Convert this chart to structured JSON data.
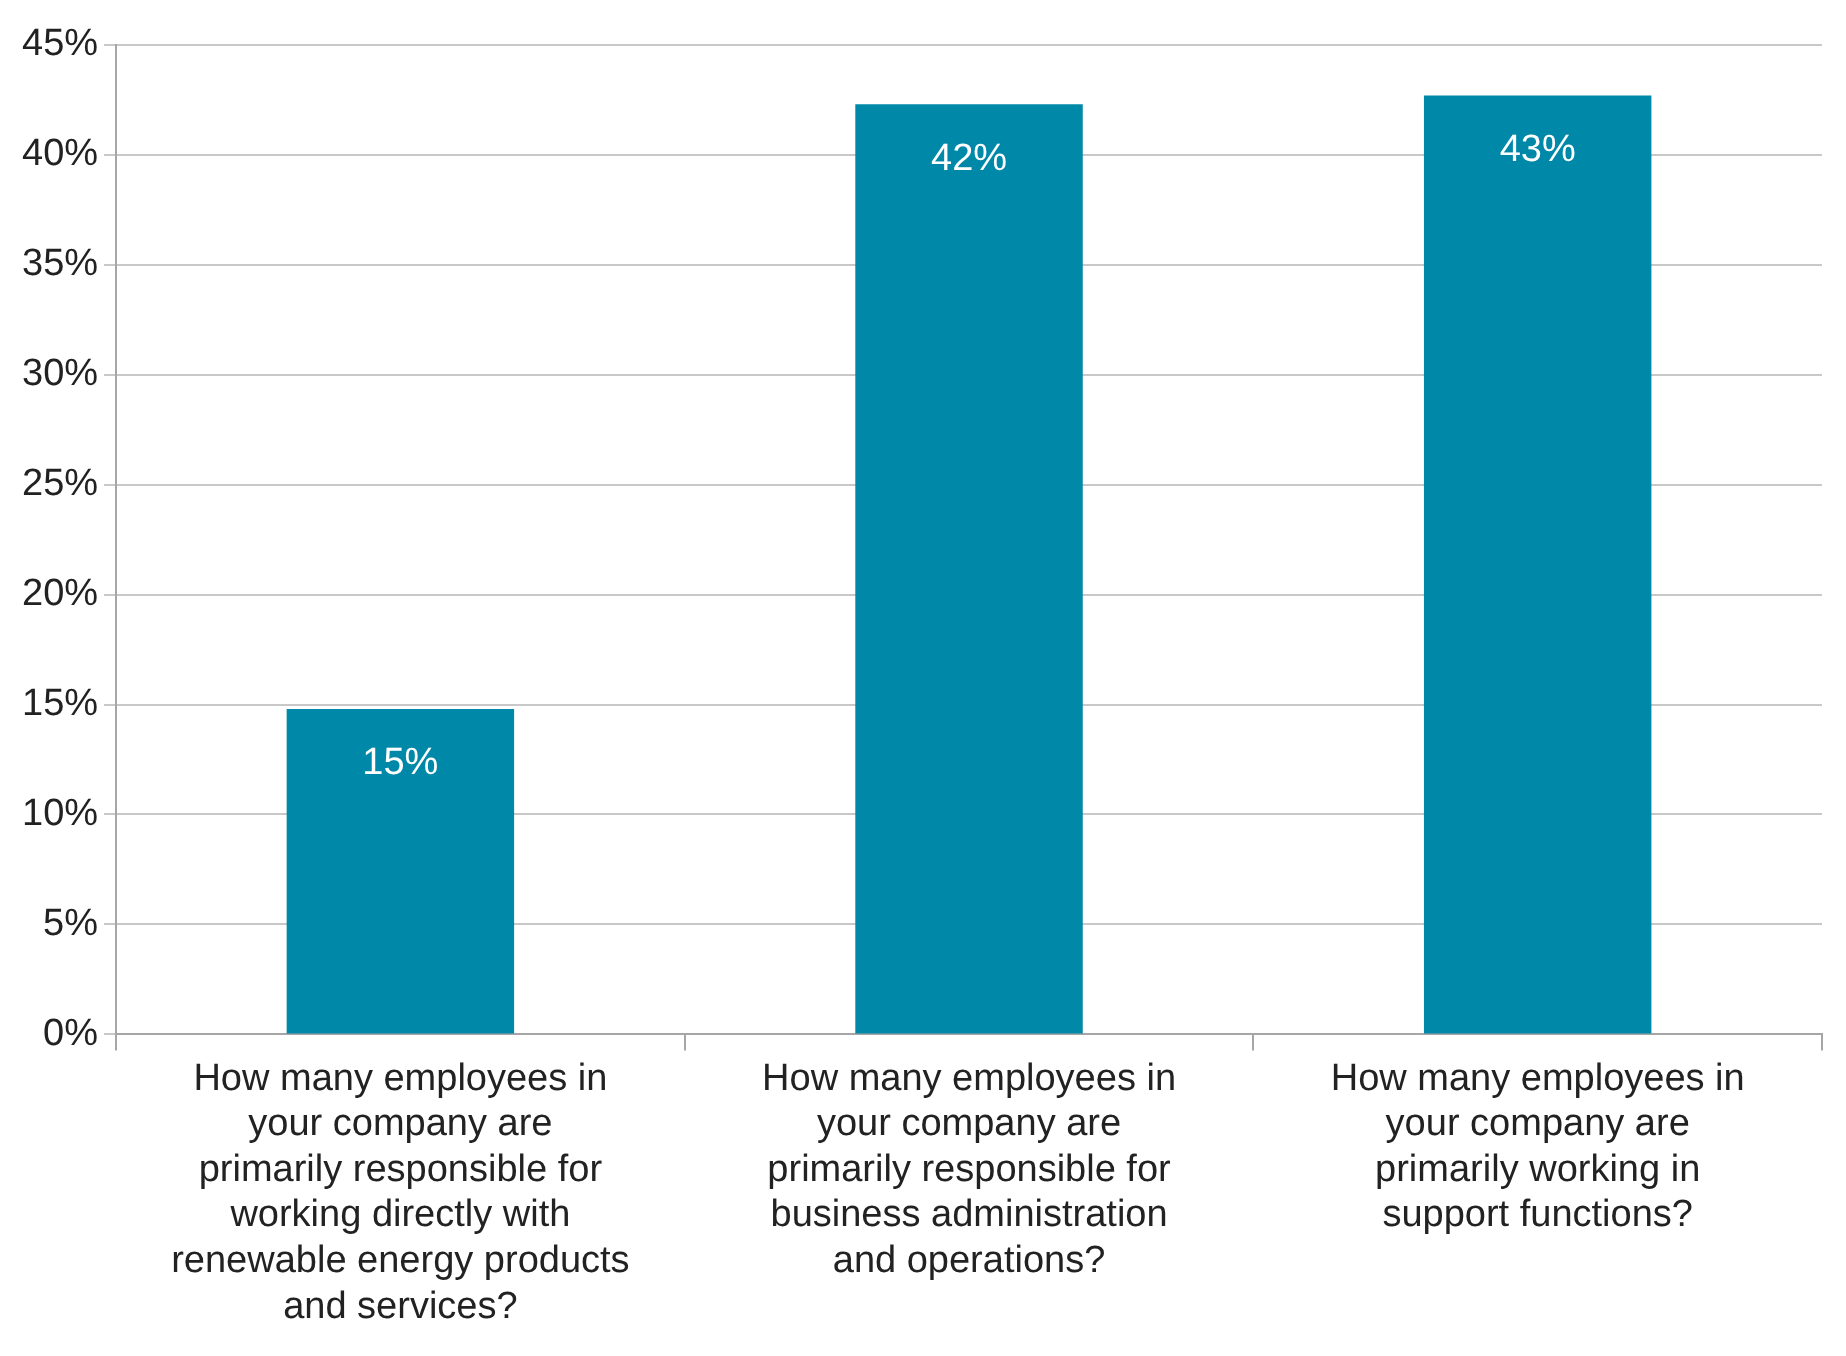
{
  "chart_data": {
    "type": "bar",
    "categories": [
      "How many employees in your company are primarily responsible for working directly with renewable energy products and services?",
      "How many employees in your company are primarily responsible for business administration and operations?",
      "How many employees in your company are primarily working in support functions?"
    ],
    "values": [
      14.8,
      42.3,
      42.7
    ],
    "value_labels": [
      "15%",
      "42%",
      "43%"
    ],
    "color": "#0088a8",
    "ylim": [
      0,
      45
    ],
    "yticks": [
      {
        "value": 0,
        "label": "0%"
      },
      {
        "value": 5,
        "label": "5%"
      },
      {
        "value": 10,
        "label": "10%"
      },
      {
        "value": 15,
        "label": "15%"
      },
      {
        "value": 20,
        "label": "20%"
      },
      {
        "value": 25,
        "label": "25%"
      },
      {
        "value": 30,
        "label": "30%"
      },
      {
        "value": 35,
        "label": "35%"
      },
      {
        "value": 40,
        "label": "40%"
      },
      {
        "value": 45,
        "label": "45%"
      }
    ],
    "grid": "y",
    "legend": false
  }
}
